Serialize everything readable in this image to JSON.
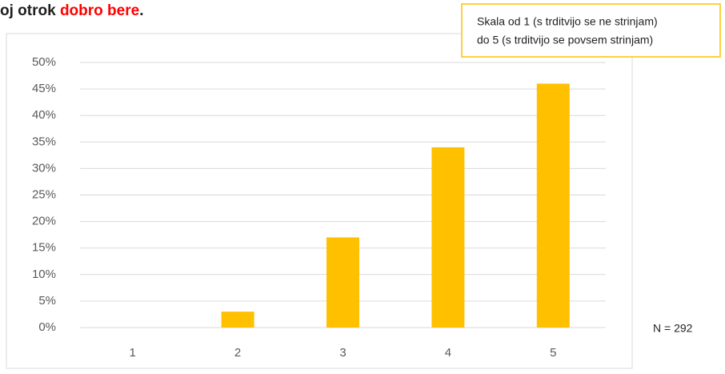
{
  "chart_data": {
    "type": "bar",
    "title_parts": [
      "oj otrok ",
      "dobro bere",
      "."
    ],
    "annotations": [
      "Skala od 1 (s trditvijo se ne strinjam)",
      "do 5 (s trditvijo se povsem strinjam)",
      "N = 292"
    ],
    "categories": [
      "1",
      "2",
      "3",
      "4",
      "5"
    ],
    "values": [
      0,
      3,
      17,
      34,
      46
    ],
    "color": "#ffc000",
    "ylim": [
      0,
      50
    ],
    "yticks": [
      {
        "value": 0,
        "label": "0%"
      },
      {
        "value": 5,
        "label": "5%"
      },
      {
        "value": 10,
        "label": "10%"
      },
      {
        "value": 15,
        "label": "15%"
      },
      {
        "value": 20,
        "label": "20%"
      },
      {
        "value": 25,
        "label": "25%"
      },
      {
        "value": 30,
        "label": "30%"
      },
      {
        "value": 35,
        "label": "35%"
      },
      {
        "value": 40,
        "label": "40%"
      },
      {
        "value": 45,
        "label": "45%"
      },
      {
        "value": 50,
        "label": "50%"
      }
    ],
    "grid": true
  }
}
